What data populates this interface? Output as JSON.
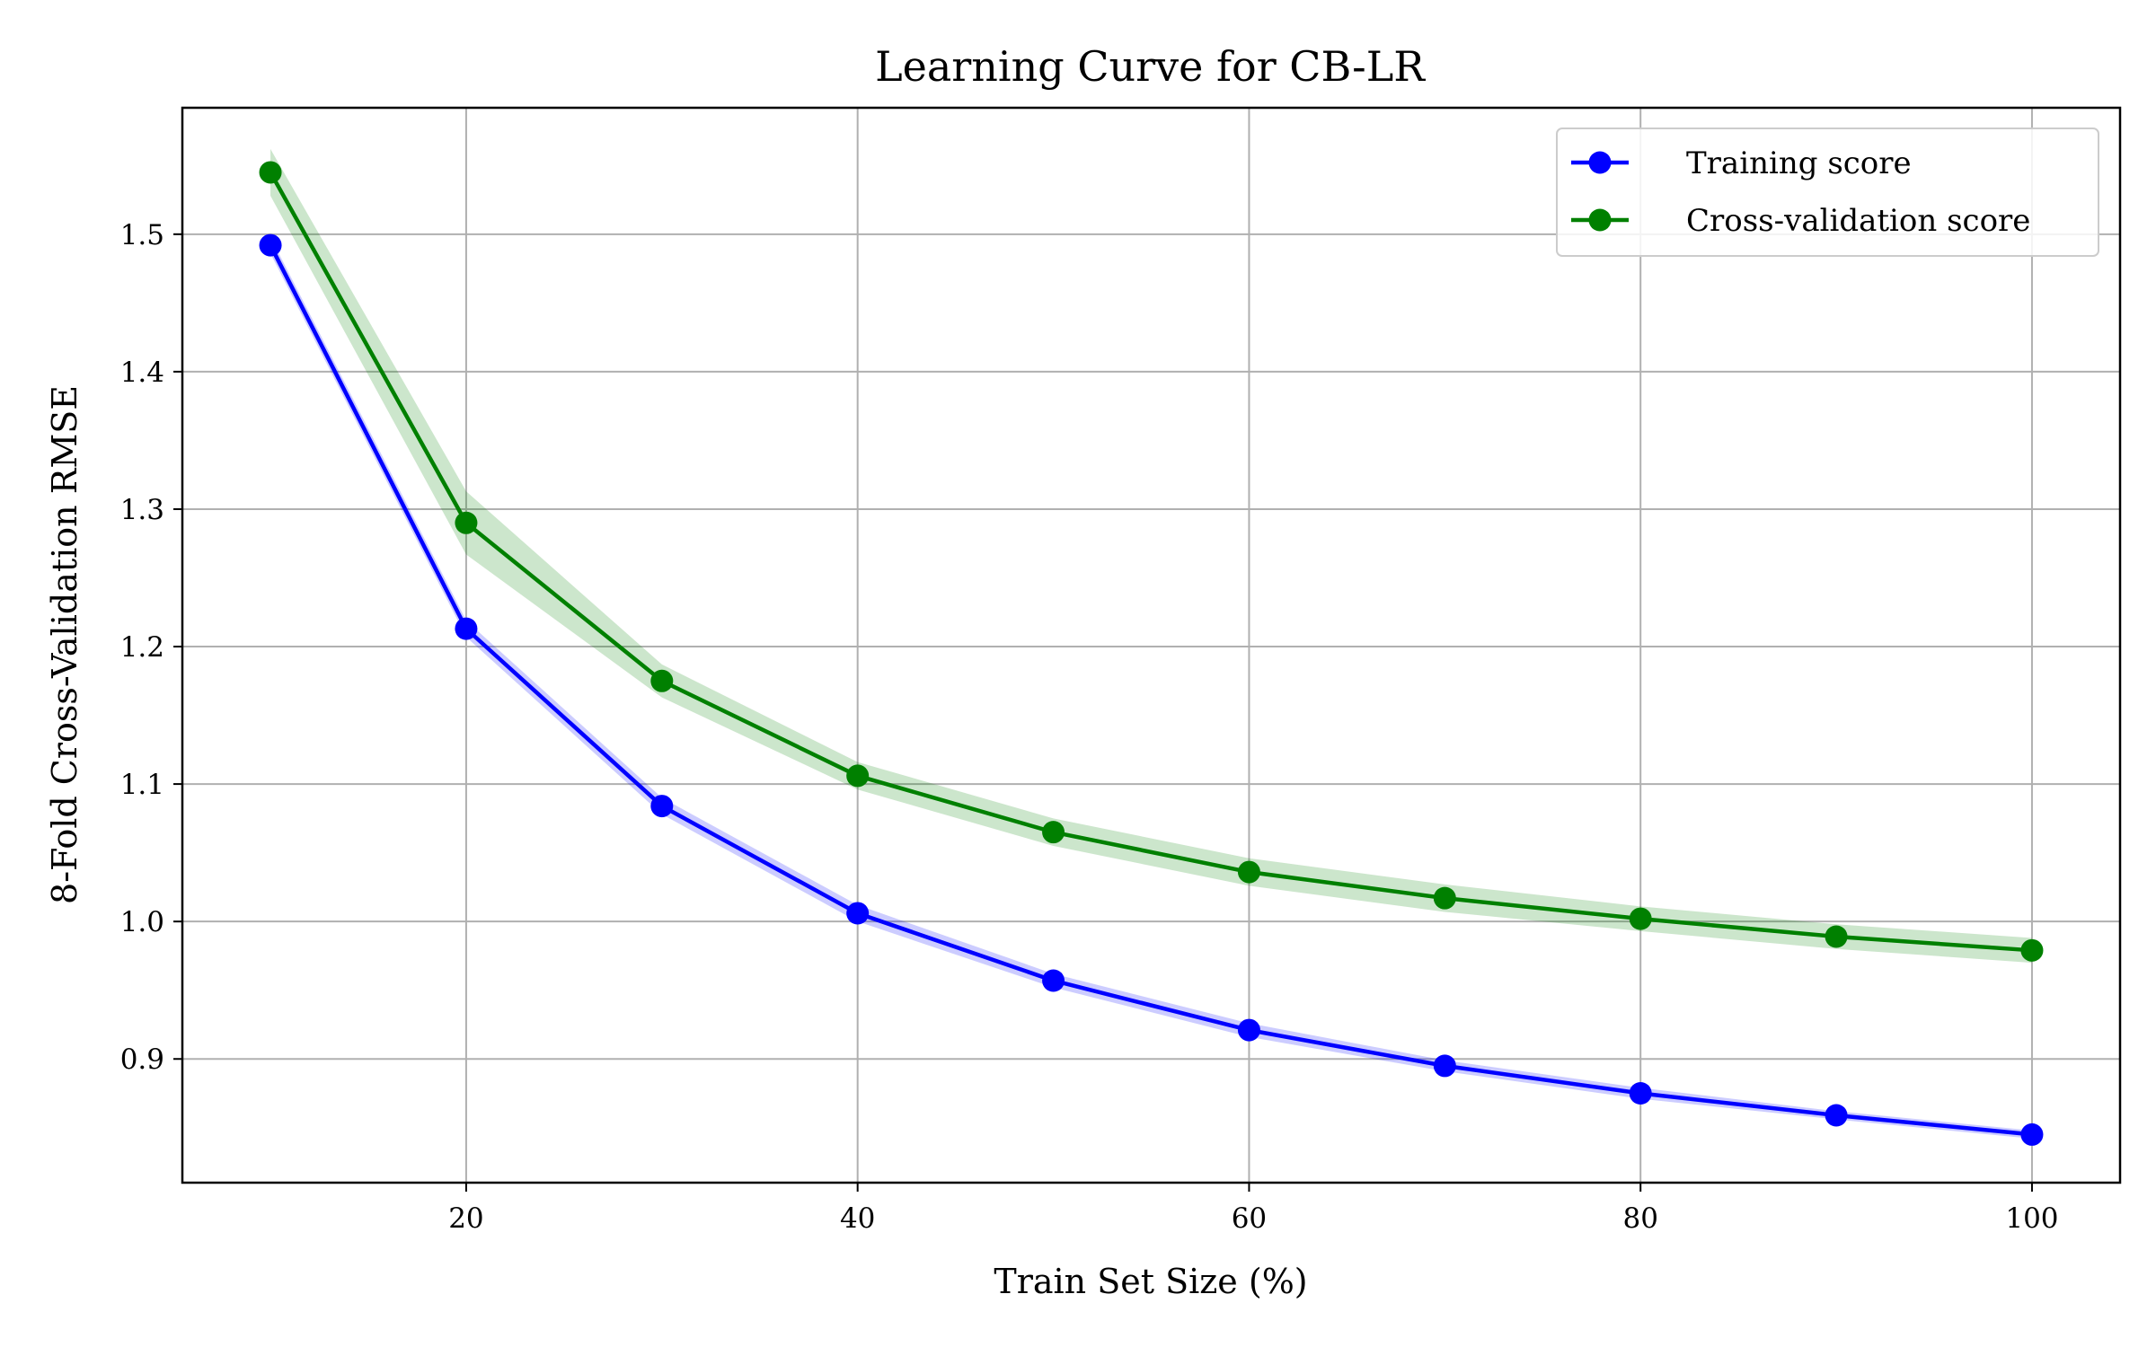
{
  "chart_data": {
    "type": "line",
    "title": "Learning Curve for CB-LR",
    "xlabel": "Train Set Size (%)",
    "ylabel": "8-Fold Cross-Validation RMSE",
    "xlim": [
      5.5,
      104.5
    ],
    "ylim": [
      0.81,
      1.592
    ],
    "x_ticks": [
      20,
      40,
      60,
      80,
      100
    ],
    "y_ticks": [
      0.9,
      1.0,
      1.1,
      1.2,
      1.3,
      1.4,
      1.5
    ],
    "grid": true,
    "legend_position": "top-right",
    "x": [
      10,
      20,
      30,
      40,
      50,
      60,
      70,
      80,
      90,
      100
    ],
    "series": [
      {
        "name": "Training score",
        "color": "#0000ff",
        "values": [
          1.492,
          1.213,
          1.084,
          1.006,
          0.957,
          0.921,
          0.895,
          0.875,
          0.859,
          0.845
        ],
        "band": [
          0.006,
          0.006,
          0.006,
          0.006,
          0.005,
          0.005,
          0.004,
          0.004,
          0.003,
          0.003
        ]
      },
      {
        "name": "Cross-validation score",
        "color": "#008000",
        "values": [
          1.545,
          1.29,
          1.175,
          1.106,
          1.065,
          1.036,
          1.017,
          1.002,
          0.989,
          0.979
        ],
        "band": [
          0.017,
          0.023,
          0.012,
          0.01,
          0.01,
          0.01,
          0.01,
          0.009,
          0.009,
          0.009
        ]
      }
    ]
  }
}
